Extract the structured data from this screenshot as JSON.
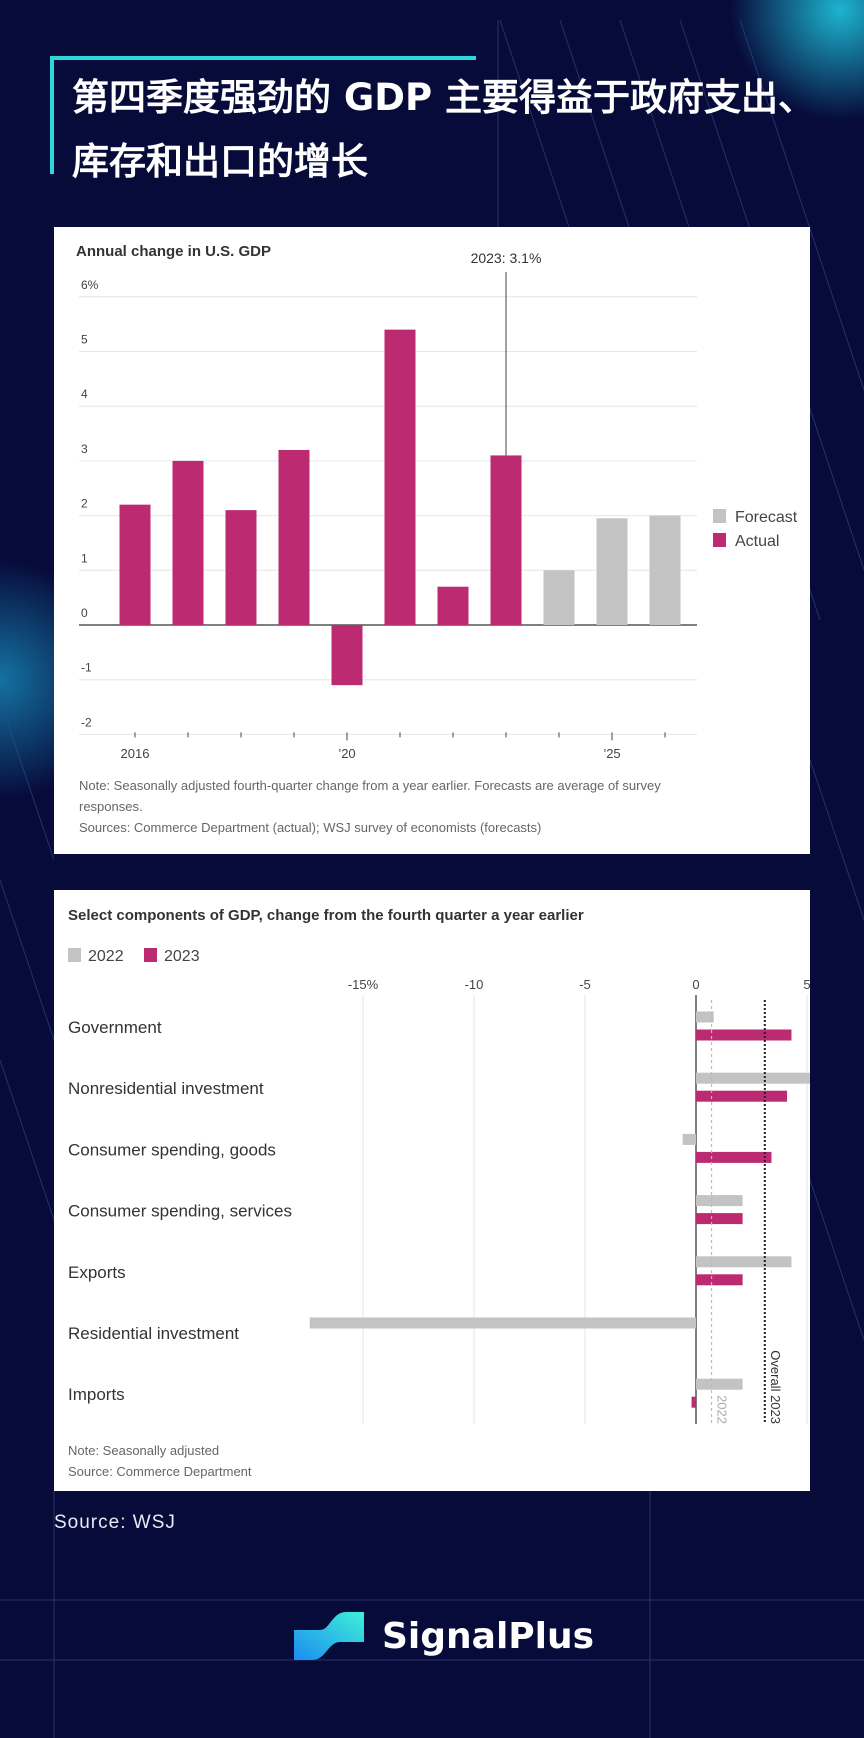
{
  "header": {
    "title": "第四季度强劲的 GDP 主要得益于政府支出、库存和出口的增长"
  },
  "colors": {
    "actual": "#bc2a72",
    "forecast": "#c3c3c3",
    "accent": "#2fd6dc",
    "background": "#070b3a"
  },
  "chart_data": [
    {
      "type": "bar",
      "title": "Annual change in U.S. GDP",
      "categories": [
        "2016",
        "2017",
        "2018",
        "2019",
        "2020",
        "2021",
        "2022",
        "2023",
        "2024",
        "2025",
        "2026"
      ],
      "series": [
        {
          "name": "Actual",
          "values": [
            2.2,
            3.0,
            2.1,
            3.2,
            -1.1,
            5.4,
            0.7,
            3.1,
            null,
            null,
            null
          ]
        },
        {
          "name": "Forecast",
          "values": [
            null,
            null,
            null,
            null,
            null,
            null,
            null,
            null,
            1.0,
            1.95,
            2.0
          ]
        }
      ],
      "ylim": [
        -2,
        6
      ],
      "yticks": [
        "6%",
        "5",
        "4",
        "3",
        "2",
        "1",
        "0",
        "-1",
        "-2"
      ],
      "ytick_values": [
        6,
        5,
        4,
        3,
        2,
        1,
        0,
        -1,
        -2
      ],
      "xtick_labels": [
        {
          "category": "2016",
          "label": "2016"
        },
        {
          "category": "2020",
          "label": "’20"
        },
        {
          "category": "2025",
          "label": "’25"
        }
      ],
      "annotation": "2023: 3.1%",
      "legend": [
        "Forecast",
        "Actual"
      ],
      "legend_position": "right",
      "grid": true,
      "notes": [
        "Note: Seasonally adjusted fourth-quarter change from a year earlier. Forecasts are average of survey",
        "responses.",
        "Sources: Commerce Department (actual); WSJ survey of economists (forecasts)"
      ]
    },
    {
      "type": "bar",
      "orientation": "horizontal",
      "title": "Select components of GDP, change from the fourth quarter a year earlier",
      "categories": [
        "Government",
        "Nonresidential investment",
        "Consumer spending, goods",
        "Consumer spending, services",
        "Exports",
        "Residential investment",
        "Imports"
      ],
      "series": [
        {
          "name": "2022",
          "values": [
            0.8,
            5.2,
            -0.6,
            2.1,
            4.3,
            -17.4,
            2.1
          ]
        },
        {
          "name": "2023",
          "values": [
            4.3,
            4.1,
            3.4,
            2.1,
            2.1,
            0.0,
            -0.2
          ]
        }
      ],
      "xlim": [
        -17.5,
        5
      ],
      "xticks": [
        "-15%",
        "-10",
        "-5",
        "0",
        "5"
      ],
      "xtick_values": [
        -15,
        -10,
        -5,
        0,
        5
      ],
      "reference_lines": [
        {
          "label": "2022",
          "value": 0.7
        },
        {
          "label": "Overall 2023",
          "value": 3.1
        }
      ],
      "legend": [
        "2022",
        "2023"
      ],
      "legend_position": "top-left",
      "grid": true,
      "notes": [
        "Note: Seasonally adjusted",
        "Source: Commerce Department"
      ]
    }
  ],
  "footer": {
    "source": "Source: WSJ",
    "brand": "SignalPlus"
  }
}
